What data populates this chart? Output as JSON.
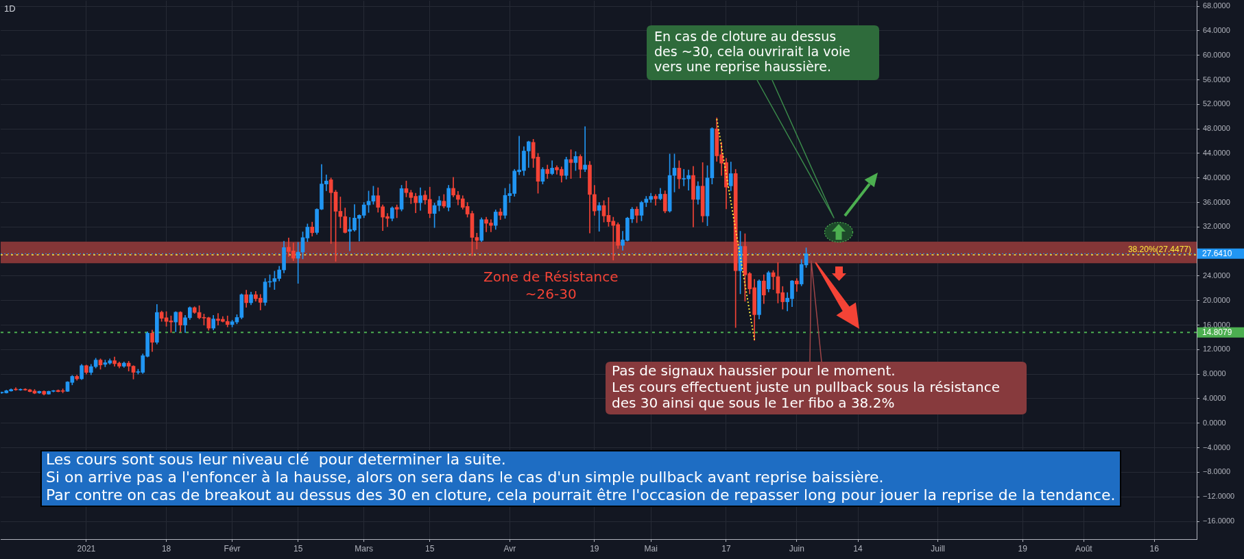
{
  "chart_data": {
    "type": "candlestick",
    "title": "1D",
    "x": [
      "2020-12-14",
      "2020-12-15",
      "2020-12-16",
      "2020-12-17",
      "2020-12-18",
      "2020-12-19",
      "2020-12-20",
      "2020-12-21",
      "2020-12-22",
      "2020-12-23",
      "2020-12-24",
      "2020-12-25",
      "2020-12-26",
      "2020-12-27",
      "2020-12-28",
      "2020-12-29",
      "2020-12-30",
      "2020-12-31",
      "2021-01-01",
      "2021-01-02",
      "2021-01-03",
      "2021-01-04",
      "2021-01-05",
      "2021-01-06",
      "2021-01-07",
      "2021-01-08",
      "2021-01-09",
      "2021-01-10",
      "2021-01-11",
      "2021-01-12",
      "2021-01-13",
      "2021-01-14",
      "2021-01-15",
      "2021-01-16",
      "2021-01-17",
      "2021-01-18",
      "2021-01-19",
      "2021-01-20",
      "2021-01-21",
      "2021-01-22",
      "2021-01-23",
      "2021-01-24",
      "2021-01-25",
      "2021-01-26",
      "2021-01-27",
      "2021-01-28",
      "2021-01-29",
      "2021-01-30",
      "2021-01-31",
      "2021-02-01",
      "2021-02-02",
      "2021-02-03",
      "2021-02-04",
      "2021-02-05",
      "2021-02-06",
      "2021-02-07",
      "2021-02-08",
      "2021-02-09",
      "2021-02-10",
      "2021-02-11",
      "2021-02-12",
      "2021-02-13",
      "2021-02-14",
      "2021-02-15",
      "2021-02-16",
      "2021-02-17",
      "2021-02-18",
      "2021-02-19",
      "2021-02-20",
      "2021-02-21",
      "2021-02-22",
      "2021-02-23",
      "2021-02-24",
      "2021-02-25",
      "2021-02-26",
      "2021-02-27",
      "2021-02-28",
      "2021-03-01",
      "2021-03-02",
      "2021-03-03",
      "2021-03-04",
      "2021-03-05",
      "2021-03-06",
      "2021-03-07",
      "2021-03-08",
      "2021-03-09",
      "2021-03-10",
      "2021-03-11",
      "2021-03-12",
      "2021-03-13",
      "2021-03-14",
      "2021-03-15",
      "2021-03-16",
      "2021-03-17",
      "2021-03-18",
      "2021-03-19",
      "2021-03-20",
      "2021-03-21",
      "2021-03-22",
      "2021-03-23",
      "2021-03-24",
      "2021-03-25",
      "2021-03-26",
      "2021-03-27",
      "2021-03-28",
      "2021-03-29",
      "2021-03-30",
      "2021-03-31",
      "2021-04-01",
      "2021-04-02",
      "2021-04-03",
      "2021-04-04",
      "2021-04-05",
      "2021-04-06",
      "2021-04-07",
      "2021-04-08",
      "2021-04-09",
      "2021-04-10",
      "2021-04-11",
      "2021-04-12",
      "2021-04-13",
      "2021-04-14",
      "2021-04-15",
      "2021-04-16",
      "2021-04-17",
      "2021-04-18",
      "2021-04-19",
      "2021-04-20",
      "2021-04-21",
      "2021-04-22",
      "2021-04-23",
      "2021-04-24",
      "2021-04-25",
      "2021-04-26",
      "2021-04-27",
      "2021-04-28",
      "2021-04-29",
      "2021-04-30",
      "2021-05-01",
      "2021-05-02",
      "2021-05-03",
      "2021-05-04",
      "2021-05-05",
      "2021-05-06",
      "2021-05-07",
      "2021-05-08",
      "2021-05-09",
      "2021-05-10",
      "2021-05-11",
      "2021-05-12",
      "2021-05-13",
      "2021-05-14",
      "2021-05-15",
      "2021-05-16",
      "2021-05-17",
      "2021-05-18",
      "2021-05-19",
      "2021-05-20",
      "2021-05-21",
      "2021-05-22",
      "2021-05-23",
      "2021-05-24",
      "2021-05-25",
      "2021-05-26",
      "2021-05-27",
      "2021-05-28",
      "2021-05-29",
      "2021-05-30",
      "2021-05-31",
      "2021-06-01",
      "2021-06-02",
      "2021-06-03"
    ],
    "ohlc": [
      [
        4.95,
        5.1,
        4.85,
        5.02
      ],
      [
        4.95,
        5.4,
        4.9,
        5.3
      ],
      [
        5.26,
        5.6,
        5.2,
        5.5
      ],
      [
        5.55,
        5.8,
        5.35,
        5.45
      ],
      [
        5.42,
        5.6,
        5.35,
        5.5
      ],
      [
        5.55,
        5.65,
        5.35,
        5.42
      ],
      [
        5.45,
        5.55,
        5.1,
        5.15
      ],
      [
        5.25,
        5.5,
        4.8,
        4.9
      ],
      [
        4.95,
        5.25,
        4.85,
        5.2
      ],
      [
        5.2,
        5.3,
        4.6,
        4.75
      ],
      [
        4.75,
        5.25,
        4.7,
        5.2
      ],
      [
        5.2,
        5.35,
        5.1,
        5.25
      ],
      [
        5.35,
        5.45,
        5.1,
        5.15
      ],
      [
        5.3,
        5.6,
        4.95,
        5.2
      ],
      [
        5.2,
        6.8,
        5.15,
        6.73
      ],
      [
        6.65,
        7.8,
        6.25,
        7.64
      ],
      [
        7.64,
        7.85,
        7.0,
        7.24
      ],
      [
        7.24,
        9.6,
        7.1,
        9.39
      ],
      [
        9.39,
        9.5,
        8.0,
        8.28
      ],
      [
        8.28,
        9.6,
        7.9,
        9.23
      ],
      [
        9.23,
        10.6,
        9.0,
        10.3
      ],
      [
        10.3,
        10.5,
        8.8,
        9.5
      ],
      [
        9.6,
        10.3,
        9.2,
        9.87
      ],
      [
        9.8,
        10.5,
        9.6,
        10.2
      ],
      [
        10.2,
        10.8,
        9.3,
        9.7
      ],
      [
        9.8,
        10.0,
        9.0,
        9.3
      ],
      [
        9.3,
        10.0,
        9.1,
        9.8
      ],
      [
        9.8,
        10.1,
        8.5,
        9.3
      ],
      [
        9.3,
        9.4,
        7.2,
        8.3
      ],
      [
        8.3,
        8.8,
        8.0,
        8.4
      ],
      [
        8.3,
        11.3,
        8.1,
        11.02
      ],
      [
        10.9,
        14.9,
        10.8,
        14.68
      ],
      [
        14.68,
        15.2,
        11.7,
        13.2
      ],
      [
        13.2,
        19.37,
        12.9,
        18.06
      ],
      [
        18.1,
        18.3,
        16.6,
        17.1
      ],
      [
        17.2,
        18.2,
        15.8,
        16.6
      ],
      [
        16.7,
        17.5,
        14.8,
        16.5
      ],
      [
        16.5,
        18.2,
        14.9,
        18.1
      ],
      [
        18.1,
        18.2,
        14.9,
        16.0
      ],
      [
        16.0,
        17.6,
        14.8,
        17.2
      ],
      [
        17.2,
        19.0,
        16.9,
        18.85
      ],
      [
        18.85,
        19.0,
        17.9,
        18.06
      ],
      [
        18.06,
        19.17,
        17.0,
        17.2
      ],
      [
        17.25,
        17.8,
        16.0,
        17.15
      ],
      [
        17.2,
        17.3,
        15.15,
        15.5
      ],
      [
        15.5,
        17.6,
        15.2,
        17.0
      ],
      [
        17.0,
        17.9,
        16.0,
        16.75
      ],
      [
        16.95,
        17.4,
        16.5,
        16.6
      ],
      [
        16.6,
        17.5,
        15.7,
        16.1
      ],
      [
        16.1,
        16.8,
        15.7,
        16.55
      ],
      [
        16.5,
        17.7,
        16.2,
        17.25
      ],
      [
        17.25,
        21.1,
        17.0,
        20.96
      ],
      [
        20.96,
        21.7,
        18.9,
        19.65
      ],
      [
        19.65,
        21.4,
        19.3,
        20.96
      ],
      [
        20.96,
        21.5,
        19.9,
        20.3
      ],
      [
        20.4,
        21.0,
        18.46,
        19.7
      ],
      [
        19.7,
        23.6,
        19.2,
        23.03
      ],
      [
        23.0,
        24.2,
        22.2,
        23.1
      ],
      [
        23.1,
        24.8,
        21.8,
        23.6
      ],
      [
        23.6,
        25.6,
        23.2,
        25.0
      ],
      [
        25.0,
        29.67,
        24.5,
        28.64
      ],
      [
        28.7,
        30.2,
        27.2,
        28.0
      ],
      [
        28.1,
        29.4,
        26.5,
        26.9
      ],
      [
        26.9,
        29.5,
        22.8,
        27.9
      ],
      [
        27.9,
        31.2,
        26.8,
        30.27
      ],
      [
        30.2,
        32.5,
        29.6,
        31.98
      ],
      [
        32.0,
        32.8,
        30.5,
        31.06
      ],
      [
        31.1,
        35.0,
        30.8,
        34.88
      ],
      [
        34.9,
        42.2,
        34.8,
        39.01
      ],
      [
        39.0,
        40.5,
        37.9,
        39.5
      ],
      [
        39.7,
        40.0,
        29.3,
        37.6
      ],
      [
        37.7,
        38.0,
        26.4,
        34.56
      ],
      [
        34.56,
        36.9,
        31.86,
        33.7
      ],
      [
        33.7,
        35.1,
        31.0,
        31.1
      ],
      [
        31.3,
        33.57,
        28.1,
        31.6
      ],
      [
        31.5,
        35.67,
        31.3,
        33.45
      ],
      [
        33.4,
        34.0,
        29.7,
        33.9
      ],
      [
        33.9,
        36.0,
        33.5,
        35.6
      ],
      [
        35.6,
        37.86,
        34.36,
        36.2
      ],
      [
        36.2,
        38.65,
        35.7,
        37.1
      ],
      [
        37.1,
        38.4,
        34.4,
        35.2
      ],
      [
        35.3,
        35.6,
        31.4,
        33.6
      ],
      [
        33.7,
        34.2,
        32.06,
        33.4
      ],
      [
        33.4,
        35.3,
        33.0,
        35.1
      ],
      [
        35.2,
        35.6,
        33.5,
        34.9
      ],
      [
        34.9,
        38.8,
        34.6,
        38.26
      ],
      [
        38.26,
        39.5,
        36.9,
        37.6
      ],
      [
        37.6,
        38.0,
        35.8,
        36.8
      ],
      [
        37.0,
        37.5,
        34.3,
        35.95
      ],
      [
        35.95,
        38.4,
        34.7,
        37.1
      ],
      [
        37.2,
        37.9,
        35.7,
        36.4
      ],
      [
        36.5,
        38.5,
        33.5,
        34.2
      ],
      [
        34.2,
        35.9,
        31.9,
        35.5
      ],
      [
        35.5,
        37.0,
        34.6,
        36.3
      ],
      [
        36.2,
        37.3,
        35.1,
        35.4
      ],
      [
        35.2,
        38.8,
        34.6,
        38.3
      ],
      [
        38.3,
        40.1,
        36.9,
        37.2
      ],
      [
        37.2,
        37.8,
        35.6,
        36.5
      ],
      [
        36.6,
        37.1,
        34.9,
        35.2
      ],
      [
        35.35,
        36.0,
        33.6,
        34.1
      ],
      [
        34.2,
        34.6,
        27.3,
        30.3
      ],
      [
        30.3,
        31.0,
        28.4,
        29.8
      ],
      [
        29.8,
        33.5,
        29.6,
        33.2
      ],
      [
        33.2,
        33.6,
        31.2,
        32.6
      ],
      [
        32.65,
        33.2,
        31.2,
        32.25
      ],
      [
        32.25,
        34.8,
        31.6,
        34.45
      ],
      [
        34.45,
        35.0,
        33.2,
        33.9
      ],
      [
        33.9,
        38.3,
        33.4,
        37.15
      ],
      [
        37.1,
        39.0,
        36.0,
        37.46
      ],
      [
        37.46,
        41.4,
        37.0,
        41.12
      ],
      [
        41.0,
        46.8,
        40.5,
        41.3
      ],
      [
        41.2,
        45.1,
        40.4,
        44.38
      ],
      [
        44.4,
        46.0,
        41.7,
        45.9
      ],
      [
        45.8,
        46.3,
        41.7,
        43.2
      ],
      [
        43.4,
        44.0,
        37.5,
        39.45
      ],
      [
        39.45,
        41.7,
        39.0,
        41.4
      ],
      [
        41.4,
        42.1,
        39.9,
        40.7
      ],
      [
        40.7,
        42.8,
        40.5,
        41.6
      ],
      [
        41.7,
        42.0,
        40.6,
        41.3
      ],
      [
        41.4,
        41.8,
        39.3,
        40.4
      ],
      [
        40.4,
        43.4,
        39.8,
        43.0
      ],
      [
        43.0,
        44.6,
        39.9,
        42.5
      ],
      [
        42.5,
        44.3,
        41.2,
        43.5
      ],
      [
        43.5,
        43.8,
        40.0,
        41.4
      ],
      [
        41.4,
        48.36,
        41.0,
        42.1
      ],
      [
        42.1,
        42.7,
        31.0,
        37.3
      ],
      [
        37.3,
        38.8,
        33.9,
        34.6
      ],
      [
        34.7,
        36.0,
        31.3,
        35.5
      ],
      [
        35.5,
        36.3,
        32.8,
        33.8
      ],
      [
        33.9,
        36.8,
        32.1,
        32.85
      ],
      [
        32.95,
        33.6,
        26.6,
        32.25
      ],
      [
        32.4,
        32.7,
        28.5,
        29.0
      ],
      [
        29.0,
        31.3,
        28.2,
        29.9
      ],
      [
        29.8,
        33.6,
        29.7,
        33.45
      ],
      [
        33.3,
        35.2,
        32.7,
        34.9
      ],
      [
        34.9,
        35.3,
        32.7,
        33.9
      ],
      [
        33.9,
        36.2,
        33.0,
        36.0
      ],
      [
        36.0,
        37.0,
        35.3,
        36.55
      ],
      [
        36.5,
        37.5,
        36.0,
        37.0
      ],
      [
        37.0,
        37.3,
        35.55,
        36.6
      ],
      [
        36.6,
        38.3,
        36.4,
        37.35
      ],
      [
        37.35,
        37.9,
        34.3,
        34.6
      ],
      [
        34.6,
        43.9,
        34.4,
        40.4
      ],
      [
        40.4,
        43.9,
        37.7,
        41.6
      ],
      [
        41.6,
        42.8,
        38.26,
        39.85
      ],
      [
        39.8,
        41.4,
        38.7,
        39.9
      ],
      [
        39.85,
        41.3,
        38.0,
        40.4
      ],
      [
        40.4,
        41.9,
        31.98,
        36.5
      ],
      [
        36.5,
        39.4,
        35.7,
        38.66
      ],
      [
        38.66,
        42.5,
        32.8,
        33.8
      ],
      [
        33.8,
        42.0,
        32.2,
        40.0
      ],
      [
        40.0,
        48.2,
        39.0,
        48.04
      ],
      [
        48.0,
        49.8,
        42.7,
        43.6
      ],
      [
        43.8,
        45.8,
        40.4,
        42.4
      ],
      [
        42.5,
        43.2,
        34.96,
        38.5
      ],
      [
        38.7,
        42.6,
        37.9,
        40.7
      ],
      [
        40.7,
        41.4,
        15.6,
        24.86
      ],
      [
        24.86,
        31.3,
        21.1,
        28.84
      ],
      [
        28.84,
        30.9,
        19.9,
        24.2
      ],
      [
        24.4,
        24.6,
        21.1,
        21.9
      ],
      [
        22.1,
        23.45,
        13.5,
        17.7
      ],
      [
        17.7,
        23.4,
        17.0,
        23.2
      ],
      [
        23.2,
        24.2,
        19.5,
        20.9
      ],
      [
        21.9,
        24.8,
        21.4,
        24.55
      ],
      [
        24.55,
        24.9,
        21.8,
        23.9
      ],
      [
        23.9,
        26.2,
        19.6,
        21.2
      ],
      [
        21.3,
        22.3,
        18.6,
        19.8
      ],
      [
        19.8,
        21.3,
        18.3,
        20.4
      ],
      [
        20.3,
        23.3,
        19.0,
        23.2
      ],
      [
        23.2,
        23.6,
        21.5,
        22.7
      ],
      [
        22.7,
        26.7,
        22.4,
        25.9
      ],
      [
        25.8,
        28.6,
        25.4,
        27.641
      ]
    ],
    "colors": [
      "#2196f3",
      "#2196f3",
      "#2196f3",
      "#f44336",
      "#2196f3",
      "#f44336",
      "#f44336",
      "#f44336",
      "#2196f3",
      "#f44336",
      "#2196f3",
      "#2196f3",
      "#f44336",
      "#f44336",
      "#2196f3",
      "#2196f3",
      "#f44336",
      "#2196f3",
      "#f44336",
      "#2196f3",
      "#2196f3",
      "#f44336",
      "#2196f3",
      "#2196f3",
      "#f44336",
      "#f44336",
      "#2196f3",
      "#f44336",
      "#f44336",
      "#2196f3",
      "#2196f3",
      "#2196f3",
      "#f44336",
      "#2196f3",
      "#f44336",
      "#f44336",
      "#f44336",
      "#2196f3",
      "#f44336",
      "#2196f3",
      "#2196f3",
      "#f44336",
      "#f44336",
      "#f44336",
      "#f44336",
      "#2196f3",
      "#f44336",
      "#f44336",
      "#f44336",
      "#2196f3",
      "#2196f3",
      "#2196f3",
      "#f44336",
      "#2196f3",
      "#f44336",
      "#f44336",
      "#2196f3",
      "#2196f3",
      "#2196f3",
      "#2196f3",
      "#2196f3",
      "#f44336",
      "#f44336",
      "#2196f3",
      "#2196f3",
      "#2196f3",
      "#f44336",
      "#2196f3",
      "#2196f3",
      "#2196f3",
      "#f44336",
      "#f44336",
      "#f44336",
      "#f44336",
      "#2196f3",
      "#2196f3",
      "#2196f3",
      "#2196f3",
      "#2196f3",
      "#2196f3",
      "#f44336",
      "#f44336",
      "#f44336",
      "#2196f3",
      "#f44336",
      "#2196f3",
      "#f44336",
      "#f44336",
      "#f44336",
      "#2196f3",
      "#f44336",
      "#f44336",
      "#2196f3",
      "#2196f3",
      "#f44336",
      "#2196f3",
      "#f44336",
      "#f44336",
      "#f44336",
      "#f44336",
      "#f44336",
      "#f44336",
      "#2196f3",
      "#f44336",
      "#f44336",
      "#2196f3",
      "#f44336",
      "#2196f3",
      "#2196f3",
      "#2196f3",
      "#2196f3",
      "#2196f3",
      "#2196f3",
      "#f44336",
      "#f44336",
      "#2196f3",
      "#f44336",
      "#2196f3",
      "#f44336",
      "#f44336",
      "#2196f3",
      "#f44336",
      "#2196f3",
      "#f44336",
      "#2196f3",
      "#f44336",
      "#f44336",
      "#2196f3",
      "#f44336",
      "#f44336",
      "#f44336",
      "#f44336",
      "#2196f3",
      "#2196f3",
      "#2196f3",
      "#f44336",
      "#2196f3",
      "#2196f3",
      "#2196f3",
      "#f44336",
      "#2196f3",
      "#f44336",
      "#2196f3",
      "#2196f3",
      "#f44336",
      "#2196f3",
      "#2196f3",
      "#f44336",
      "#2196f3",
      "#f44336",
      "#2196f3",
      "#2196f3",
      "#f44336",
      "#f44336",
      "#f44336",
      "#2196f3",
      "#f44336",
      "#2196f3",
      "#f44336",
      "#f44336",
      "#f44336",
      "#2196f3",
      "#f44336",
      "#2196f3",
      "#f44336",
      "#f44336",
      "#f44336",
      "#2196f3",
      "#2196f3",
      "#f44336",
      "#2196f3",
      "#2196f3"
    ],
    "series": [
      {
        "type": "line",
        "x": [
          "2021-05-15",
          "2021-05-23"
        ],
        "values": [
          49.6,
          13.6
        ],
        "color": "#ffeb3b",
        "line_style": "dotted"
      }
    ],
    "ref_lines": [
      {
        "axis": "y",
        "value": 27.641,
        "label": "27.6410",
        "color": "#2196f3",
        "line_style": "dotted"
      },
      {
        "axis": "y",
        "value": 14.8079,
        "label": "14.8079",
        "color": "#4caf50",
        "line_style": "dotted"
      },
      {
        "axis": "y",
        "value": 27.4477,
        "label": "38.20%(27.4477)",
        "color": "#ffeb3b",
        "line_style": "dotted"
      }
    ],
    "bands": [
      {
        "axis": "y",
        "from": 26.1,
        "to": 29.6,
        "label": "Zone de Résistance\n~26-30",
        "color": "#843637"
      }
    ],
    "annotations": [
      "En cas de cloture au dessus\ndes ~30, cela ouvrirait la voie\nvers une reprise haussière.",
      "Pas de signaux haussier pour le moment.\nLes cours effectuent juste un pullback sous la résistance\ndes 30 ainsi que sous le 1er fibo a 38.2%",
      "Les cours sont sous leur niveau clé  pour determiner la suite.\nSi on arrive pas a l'enfoncer à la hausse, alors on sera dans le cas d'un simple pullback avant reprise baissière.\nPar contre on cas de breakout au dessus des 30 en cloture, cela pourrait être l'occasion de repasser long pour jouer la reprise de la tendance."
    ],
    "xlim": [
      "2020-12-13T19:00",
      "2021-08-25"
    ],
    "xticks": [
      {
        "value": "2021-01-01",
        "label": "2021"
      },
      {
        "value": "2021-01-18",
        "label": "18"
      },
      {
        "value": "2021-02-01",
        "label": "Févr"
      },
      {
        "value": "2021-02-15",
        "label": "15"
      },
      {
        "value": "2021-03-01",
        "label": "Mars"
      },
      {
        "value": "2021-03-15",
        "label": "15"
      },
      {
        "value": "2021-04-01",
        "label": "Avr"
      },
      {
        "value": "2021-04-19",
        "label": "19"
      },
      {
        "value": "2021-05-01",
        "label": "Mai"
      },
      {
        "value": "2021-05-17",
        "label": "17"
      },
      {
        "value": "2021-06-01",
        "label": "Juin"
      },
      {
        "value": "2021-06-14",
        "label": "14"
      },
      {
        "value": "2021-07-01",
        "label": "Juill"
      },
      {
        "value": "2021-07-19",
        "label": "19"
      },
      {
        "value": "2021-08-01",
        "label": "Août"
      },
      {
        "value": "2021-08-16",
        "label": "16"
      }
    ],
    "ylim": [
      -18.9,
      68.9
    ],
    "yticks": [
      {
        "value": -16,
        "label": "−16.0000"
      },
      {
        "value": -12,
        "label": "−12.0000"
      },
      {
        "value": -8,
        "label": "−8.0000"
      },
      {
        "value": -4,
        "label": "−4.0000"
      },
      {
        "value": 0,
        "label": "0.0000"
      },
      {
        "value": 4,
        "label": "4.0000"
      },
      {
        "value": 8,
        "label": "8.0000"
      },
      {
        "value": 12,
        "label": "12.0000"
      },
      {
        "value": 16,
        "label": "16.0000"
      },
      {
        "value": 20,
        "label": "20.0000"
      },
      {
        "value": 24,
        "label": "24.0000"
      },
      {
        "value": 28,
        "label": null
      },
      {
        "value": 32,
        "label": "32.0000"
      },
      {
        "value": 36,
        "label": "36.0000"
      },
      {
        "value": 40,
        "label": "40.0000"
      },
      {
        "value": 44,
        "label": "44.0000"
      },
      {
        "value": 48,
        "label": "48.0000"
      },
      {
        "value": 52,
        "label": "52.0000"
      },
      {
        "value": 56,
        "label": "56.0000"
      },
      {
        "value": 60,
        "label": "60.0000"
      },
      {
        "value": 64,
        "label": "64.0000"
      },
      {
        "value": 68,
        "label": "68.0000"
      }
    ],
    "grid": true
  }
}
